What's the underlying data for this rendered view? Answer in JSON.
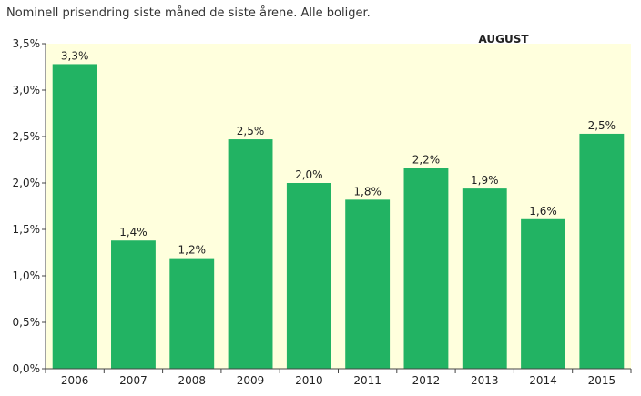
{
  "subtitle": "Nominell prisendring siste måned de siste årene. Alle boliger.",
  "month_label": "AUGUST",
  "chart_data": {
    "type": "bar",
    "title": "",
    "xlabel": "",
    "ylabel": "",
    "categories": [
      "2006",
      "2007",
      "2008",
      "2009",
      "2010",
      "2011",
      "2012",
      "2013",
      "2014",
      "2015"
    ],
    "values": [
      3.28,
      1.38,
      1.19,
      2.47,
      2.0,
      1.82,
      2.16,
      1.94,
      1.61,
      2.53
    ],
    "value_labels": [
      "3,3%",
      "1,4%",
      "1,2%",
      "2,5%",
      "2,0%",
      "1,8%",
      "2,2%",
      "1,9%",
      "1,6%",
      "2,5%"
    ],
    "yticks": [
      0,
      0.5,
      1.0,
      1.5,
      2.0,
      2.5,
      3.0,
      3.5
    ],
    "ytick_labels": [
      "0,0%",
      "0,5%",
      "1,0%",
      "1,5%",
      "2,0%",
      "2,5%",
      "3,0%",
      "3,5%"
    ],
    "ylim": [
      0,
      3.5
    ],
    "grid": false,
    "legend": "none",
    "bar_color": "#22b363",
    "axis_background": "#ffffdd"
  }
}
